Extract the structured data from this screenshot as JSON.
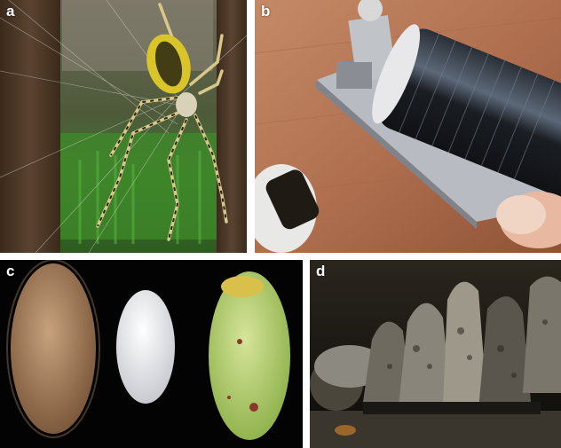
{
  "panels": [
    {
      "label": "a",
      "subject": "spider-on-web"
    },
    {
      "label": "b",
      "subject": "silk-reeling-device"
    },
    {
      "label": "c",
      "subject": "silk-cocoons"
    },
    {
      "label": "d",
      "subject": "barnacle-cluster"
    }
  ],
  "colors": {
    "panel_label": "#ffffff",
    "separator": "#ffffff"
  }
}
